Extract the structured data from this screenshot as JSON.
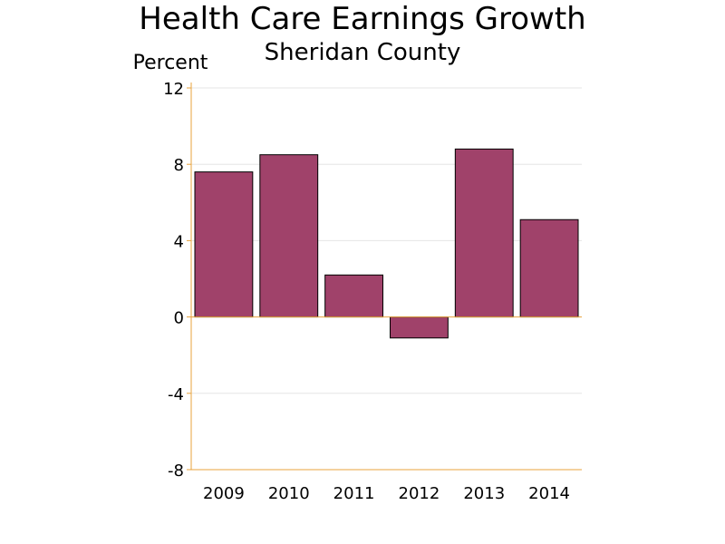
{
  "chart_data": {
    "type": "bar",
    "title": "Health Care Earnings Growth",
    "subtitle": "Sheridan County",
    "ylabel": "Percent",
    "xlabel": "",
    "categories": [
      "2009",
      "2010",
      "2011",
      "2012",
      "2013",
      "2014"
    ],
    "values": [
      7.6,
      8.5,
      2.2,
      -1.1,
      8.8,
      5.1
    ],
    "ylim": [
      -8,
      12
    ],
    "yticks": [
      12,
      8,
      4,
      0,
      -4,
      -8
    ],
    "grid": true,
    "legend": "none",
    "colors": {
      "bar_fill": "#a0426a",
      "bar_stroke": "#000000",
      "axis": "#e8a33d",
      "grid": "#e6e6e6"
    }
  }
}
